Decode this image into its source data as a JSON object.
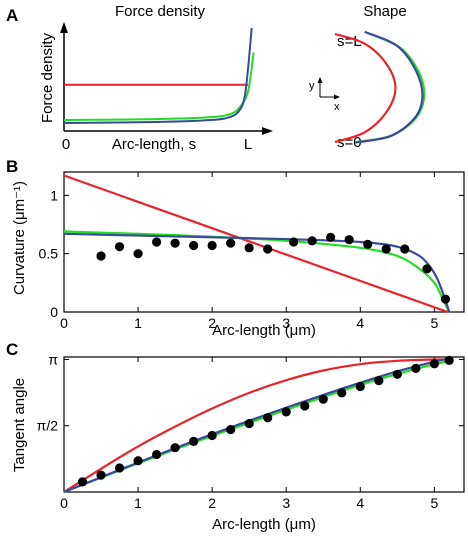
{
  "panels": [
    {
      "letter": "A"
    },
    {
      "letter": "B"
    },
    {
      "letter": "C"
    }
  ],
  "chart_data": [
    {
      "panel": "A",
      "type": "line",
      "title": "Force density",
      "ylabel": "Force density",
      "xlabel": "Arc-length, s",
      "x_tick_labels": [
        "0",
        "L"
      ],
      "xlim": [
        0,
        1
      ],
      "ylim": [
        0,
        1
      ],
      "series": [
        {
          "color": "#e8232a",
          "x": [
            0,
            1
          ],
          "y": [
            0.39,
            0.39
          ]
        },
        {
          "color": "#22dd22",
          "x": [
            0,
            0.5,
            0.8,
            0.9,
            0.95,
            1.0,
            1.03
          ],
          "y": [
            0.03,
            0.04,
            0.06,
            0.09,
            0.15,
            0.32,
            0.72
          ]
        },
        {
          "color": "#3a4a9a",
          "x": [
            0,
            0.5,
            0.8,
            0.9,
            0.95,
            0.98,
            1.0,
            1.02
          ],
          "y": [
            0.0,
            0.01,
            0.03,
            0.06,
            0.12,
            0.25,
            0.55,
            0.97
          ]
        }
      ]
    },
    {
      "panel": "A",
      "type": "line",
      "title": "Shape",
      "labels": {
        "top": "s=L",
        "bottom": "s=0",
        "y_axis": "y",
        "x_axis": "x"
      },
      "series": [
        {
          "color": "#e8232a",
          "x": [
            0.0,
            0.55,
            0.95,
            1.12,
            0.95,
            0.55,
            0.0
          ],
          "y": [
            1.0,
            0.82,
            0.45,
            0.0,
            -0.45,
            -0.82,
            -1.0
          ]
        },
        {
          "color": "#22dd22",
          "x": [
            0.6,
            1.2,
            1.55,
            1.65,
            1.5,
            1.05,
            0.4
          ],
          "y": [
            1.02,
            0.75,
            0.3,
            -0.15,
            -0.55,
            -0.88,
            -1.0
          ]
        },
        {
          "color": "#3a4a9a",
          "x": [
            0.55,
            1.15,
            1.5,
            1.62,
            1.48,
            1.03,
            0.38
          ],
          "y": [
            1.04,
            0.78,
            0.32,
            -0.15,
            -0.55,
            -0.89,
            -1.01
          ]
        }
      ]
    },
    {
      "panel": "B",
      "type": "line",
      "xlabel": "Arc-length (μm)",
      "ylabel": "Curvature (μm⁻¹)",
      "xlim": [
        0,
        5.4
      ],
      "ylim": [
        0,
        1.2
      ],
      "x_ticks": [
        0,
        1,
        2,
        3,
        4,
        5
      ],
      "x_tick_labels": [
        "0",
        "1",
        "2",
        "3",
        "4",
        "5"
      ],
      "y_ticks": [
        0,
        0.5,
        1
      ],
      "y_tick_labels": [
        "0",
        "0.5",
        "1"
      ],
      "series": [
        {
          "color": "#e8232a",
          "x": [
            0,
            5.18
          ],
          "y": [
            1.17,
            0.0
          ]
        },
        {
          "color": "#22dd22",
          "x": [
            0,
            1,
            2,
            3,
            4,
            4.5,
            4.8,
            5.0,
            5.1,
            5.2
          ],
          "y": [
            0.69,
            0.67,
            0.645,
            0.61,
            0.55,
            0.48,
            0.37,
            0.25,
            0.13,
            0.0
          ]
        },
        {
          "color": "#3a4a9a",
          "x": [
            0,
            1,
            2,
            3,
            4,
            4.5,
            4.8,
            4.95,
            5.05,
            5.15,
            5.2
          ],
          "y": [
            0.67,
            0.655,
            0.64,
            0.625,
            0.6,
            0.56,
            0.48,
            0.38,
            0.27,
            0.1,
            0.0
          ]
        },
        {
          "type": "scatter",
          "color": "#000000",
          "x": [
            0.5,
            0.75,
            1.0,
            1.25,
            1.5,
            1.75,
            2.0,
            2.25,
            2.5,
            2.75,
            3.1,
            3.35,
            3.6,
            3.85,
            4.1,
            4.35,
            4.6,
            4.9,
            5.15
          ],
          "y": [
            0.48,
            0.56,
            0.5,
            0.6,
            0.59,
            0.57,
            0.57,
            0.59,
            0.55,
            0.54,
            0.6,
            0.61,
            0.64,
            0.62,
            0.58,
            0.54,
            0.54,
            0.37,
            0.11
          ]
        }
      ]
    },
    {
      "panel": "C",
      "type": "line",
      "xlabel": "Arc-length (μm)",
      "ylabel": "Tangent angle",
      "xlim": [
        0,
        5.4
      ],
      "ylim": [
        0,
        3.2
      ],
      "x_ticks": [
        0,
        1,
        2,
        3,
        4,
        5
      ],
      "x_tick_labels": [
        "0",
        "1",
        "2",
        "3",
        "4",
        "5"
      ],
      "y_ticks": [
        1.5708,
        3.1416
      ],
      "y_tick_labels": [
        "π/2",
        "π"
      ],
      "series": [
        {
          "color": "#e8232a",
          "x": [
            0,
            0.5,
            1,
            1.5,
            2,
            2.5,
            3,
            3.5,
            4,
            4.5,
            5,
            5.2
          ],
          "y": [
            0.0,
            0.55,
            1.08,
            1.55,
            1.98,
            2.35,
            2.65,
            2.88,
            3.03,
            3.11,
            3.14,
            3.14
          ]
        },
        {
          "color": "#22dd22",
          "x": [
            0,
            0.5,
            1,
            1.5,
            2,
            2.5,
            3,
            3.5,
            4,
            4.5,
            5,
            5.2
          ],
          "y": [
            0.0,
            0.34,
            0.68,
            1.01,
            1.33,
            1.64,
            1.95,
            2.25,
            2.54,
            2.8,
            3.03,
            3.1
          ]
        },
        {
          "color": "#3a4a9a",
          "x": [
            0,
            0.5,
            1,
            1.5,
            2,
            2.5,
            3,
            3.5,
            4,
            4.5,
            5,
            5.2
          ],
          "y": [
            0.0,
            0.35,
            0.7,
            1.04,
            1.37,
            1.69,
            2.0,
            2.3,
            2.59,
            2.86,
            3.09,
            3.16
          ]
        },
        {
          "type": "scatter",
          "color": "#000000",
          "x": [
            0.25,
            0.5,
            0.75,
            1.0,
            1.25,
            1.5,
            1.75,
            2.0,
            2.25,
            2.5,
            2.75,
            3.0,
            3.25,
            3.5,
            3.75,
            4.0,
            4.25,
            4.5,
            4.75,
            5.0,
            5.2
          ],
          "y": [
            0.24,
            0.4,
            0.57,
            0.74,
            0.89,
            1.05,
            1.2,
            1.34,
            1.48,
            1.62,
            1.76,
            1.9,
            2.04,
            2.2,
            2.35,
            2.5,
            2.64,
            2.79,
            2.93,
            3.04,
            3.12
          ]
        }
      ]
    }
  ]
}
